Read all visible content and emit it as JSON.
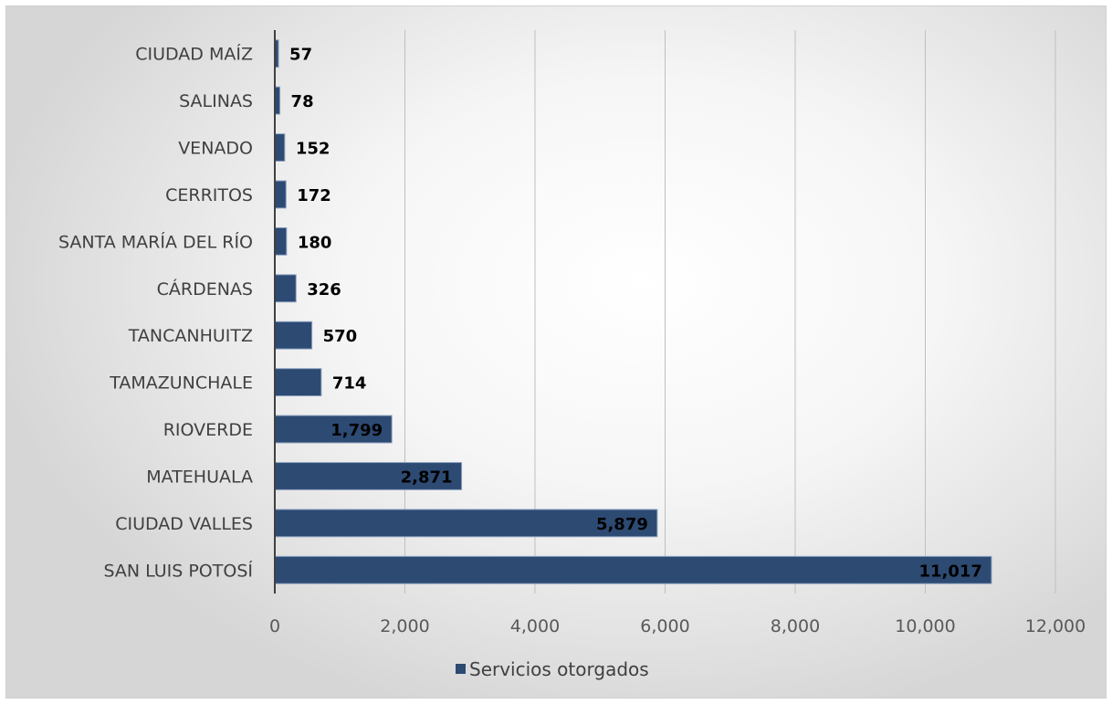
{
  "chart_data": {
    "type": "bar",
    "orientation": "horizontal",
    "categories": [
      "CIUDAD MAÍZ",
      "SALINAS",
      "VENADO",
      "CERRITOS",
      "SANTA MARÍA DEL RÍO",
      "CÁRDENAS",
      "TANCANHUITZ",
      "TAMAZUNCHALE",
      "RIOVERDE",
      "MATEHUALA",
      "CIUDAD VALLES",
      "SAN LUIS POTOSÍ"
    ],
    "series": [
      {
        "name": "Servicios otorgados",
        "values": [
          57,
          78,
          152,
          172,
          180,
          326,
          570,
          714,
          1799,
          2871,
          5879,
          11017
        ],
        "data_labels": [
          "57",
          "78",
          "152",
          "172",
          "180",
          "326",
          "570",
          "714",
          "1,799",
          "2,871",
          "5,879",
          "11,017"
        ]
      }
    ],
    "xlim": [
      0,
      12000
    ],
    "x_ticks": [
      0,
      2000,
      4000,
      6000,
      8000,
      10000,
      12000
    ],
    "x_tick_labels": [
      "0",
      "2,000",
      "4,000",
      "6,000",
      "8,000",
      "10,000",
      "12,000"
    ],
    "grid": "vertical",
    "legend": "bottom",
    "colors": {
      "bar": "#2d4a73",
      "bar_edge": "#8aa0bf",
      "grid": "#bfbfbf",
      "axis": "#404040"
    }
  }
}
